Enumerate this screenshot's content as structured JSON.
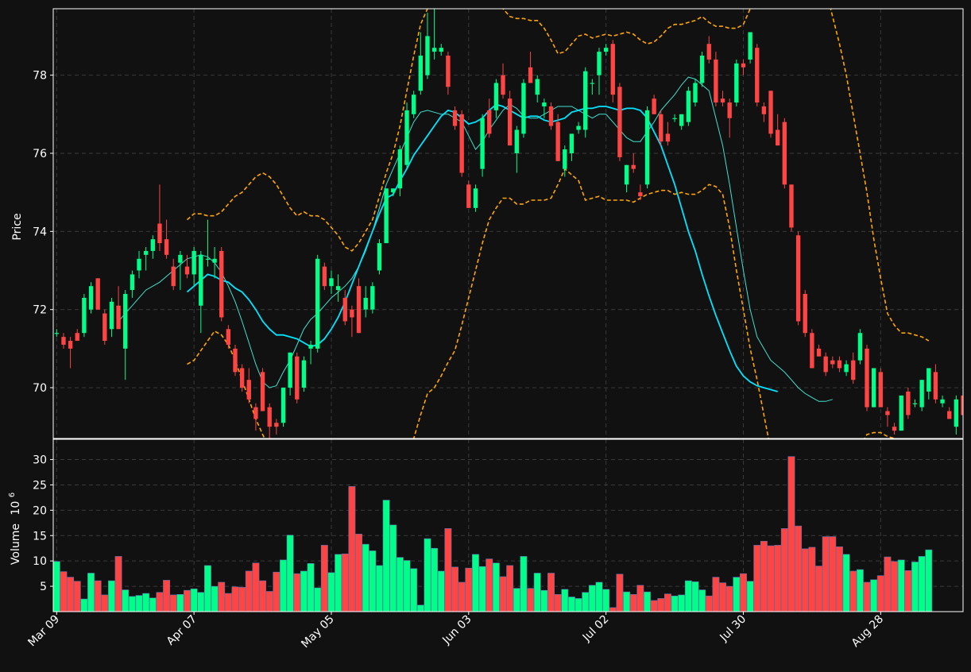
{
  "chart_data": {
    "type": "candlestick",
    "theme": {
      "background": "#111111",
      "up_color": "#00ff88",
      "down_color": "#ff4444",
      "grid_color": "#3a3a3a",
      "text_color": "#ffffff",
      "band_color": "#ffa500",
      "ma_color": "#00e5ff"
    },
    "price_panel": {
      "ylabel": "Price",
      "ylim": [
        68.7,
        79.7
      ],
      "yticks": [
        70,
        72,
        74,
        76,
        78
      ],
      "grid": true
    },
    "volume_panel": {
      "ylabel": "Volume",
      "ylabel_exponent": "10",
      "ylabel_power": "6",
      "ylim": [
        0,
        34
      ],
      "yticks": [
        5,
        10,
        15,
        20,
        25,
        30
      ],
      "grid": true
    },
    "x_tick_labels": [
      {
        "label": "Mar 09",
        "index": 0
      },
      {
        "label": "Apr 07",
        "index": 20
      },
      {
        "label": "May 05",
        "index": 40
      },
      {
        "label": "Jun 03",
        "index": 60
      },
      {
        "label": "Jul 02",
        "index": 80
      },
      {
        "label": "Jul 30",
        "index": 100
      },
      {
        "label": "Aug 28",
        "index": 120
      }
    ],
    "candles": [
      [
        71.4,
        71.5,
        71.3,
        71.4
      ],
      [
        71.3,
        71.4,
        71.0,
        71.1
      ],
      [
        71.2,
        71.3,
        70.5,
        71.0
      ],
      [
        71.4,
        71.5,
        71.2,
        71.2
      ],
      [
        71.4,
        72.4,
        71.3,
        72.3
      ],
      [
        72.0,
        72.7,
        71.9,
        72.6
      ],
      [
        72.8,
        72.8,
        72.0,
        72.0
      ],
      [
        71.9,
        72.0,
        71.1,
        71.2
      ],
      [
        71.5,
        72.3,
        71.3,
        72.2
      ],
      [
        72.1,
        72.6,
        71.5,
        71.5
      ],
      [
        71.0,
        72.5,
        70.2,
        72.4
      ],
      [
        72.5,
        73.0,
        72.3,
        72.9
      ],
      [
        73.0,
        73.5,
        72.8,
        73.3
      ],
      [
        73.4,
        73.6,
        73.0,
        73.5
      ],
      [
        73.5,
        73.9,
        73.3,
        73.8
      ],
      [
        74.2,
        75.2,
        73.5,
        73.7
      ],
      [
        73.8,
        74.3,
        73.3,
        73.4
      ],
      [
        73.1,
        73.3,
        72.5,
        72.6
      ],
      [
        73.2,
        73.5,
        72.5,
        73.4
      ],
      [
        73.1,
        73.4,
        72.8,
        72.9
      ],
      [
        72.9,
        73.6,
        72.6,
        73.5
      ],
      [
        72.1,
        73.5,
        71.4,
        73.4
      ],
      [
        73.3,
        74.3,
        73.1,
        73.3
      ],
      [
        73.2,
        73.6,
        72.8,
        73.3
      ],
      [
        73.5,
        73.6,
        71.7,
        71.8
      ],
      [
        71.5,
        71.6,
        71.0,
        71.1
      ],
      [
        71.0,
        71.1,
        70.3,
        70.4
      ],
      [
        70.5,
        70.6,
        69.9,
        70.0
      ],
      [
        70.2,
        70.5,
        69.6,
        69.7
      ],
      [
        69.5,
        69.6,
        68.9,
        69.2
      ],
      [
        70.4,
        70.5,
        69.4,
        69.4
      ],
      [
        69.5,
        69.6,
        68.6,
        69.0
      ],
      [
        69.1,
        69.2,
        68.8,
        69.0
      ],
      [
        69.1,
        70.0,
        69.0,
        70.0
      ],
      [
        70.0,
        70.9,
        69.8,
        70.9
      ],
      [
        70.8,
        70.9,
        69.6,
        69.7
      ],
      [
        70.0,
        70.8,
        69.9,
        70.7
      ],
      [
        71.0,
        71.2,
        70.6,
        71.1
      ],
      [
        71.0,
        73.4,
        70.9,
        73.3
      ],
      [
        73.1,
        73.2,
        72.5,
        72.6
      ],
      [
        72.6,
        73.0,
        72.4,
        72.8
      ],
      [
        72.5,
        72.9,
        72.2,
        72.6
      ],
      [
        72.3,
        72.5,
        71.6,
        71.7
      ],
      [
        72.0,
        72.1,
        71.3,
        71.8
      ],
      [
        72.6,
        72.8,
        71.4,
        71.4
      ],
      [
        72.0,
        72.6,
        71.8,
        72.3
      ],
      [
        72.0,
        72.7,
        71.9,
        72.6
      ],
      [
        73.0,
        73.8,
        72.9,
        73.7
      ],
      [
        73.7,
        75.1,
        73.7,
        75.1
      ],
      [
        75.0,
        75.1,
        74.9,
        75.1
      ],
      [
        75.1,
        76.2,
        74.9,
        76.1
      ],
      [
        75.7,
        77.3,
        75.6,
        77.1
      ],
      [
        77.0,
        77.6,
        76.9,
        77.5
      ],
      [
        77.6,
        79.1,
        77.5,
        78.5
      ],
      [
        78.0,
        79.6,
        77.9,
        79.0
      ],
      [
        78.6,
        79.8,
        78.4,
        78.7
      ],
      [
        78.6,
        78.8,
        78.5,
        78.7
      ],
      [
        78.5,
        78.6,
        77.5,
        77.7
      ],
      [
        77.1,
        77.2,
        76.6,
        76.7
      ],
      [
        77.0,
        77.1,
        75.4,
        75.5
      ],
      [
        75.2,
        75.3,
        74.6,
        74.6
      ],
      [
        74.6,
        75.2,
        74.5,
        75.1
      ],
      [
        75.6,
        77.0,
        75.4,
        76.9
      ],
      [
        77.1,
        77.4,
        76.4,
        76.5
      ],
      [
        77.1,
        77.9,
        76.9,
        77.8
      ],
      [
        78.0,
        78.3,
        77.4,
        77.5
      ],
      [
        77.4,
        77.6,
        76.2,
        76.2
      ],
      [
        76.0,
        76.7,
        75.5,
        76.6
      ],
      [
        76.5,
        77.9,
        76.4,
        77.8
      ],
      [
        78.2,
        78.6,
        77.8,
        77.8
      ],
      [
        77.5,
        78.0,
        77.3,
        77.9
      ],
      [
        77.2,
        77.4,
        76.9,
        77.3
      ],
      [
        77.2,
        77.3,
        76.6,
        76.7
      ],
      [
        76.8,
        77.0,
        75.8,
        75.8
      ],
      [
        75.6,
        76.2,
        75.4,
        76.1
      ],
      [
        76.0,
        76.4,
        75.8,
        76.5
      ],
      [
        76.6,
        76.8,
        76.5,
        76.7
      ],
      [
        76.6,
        78.2,
        76.4,
        78.1
      ],
      [
        77.8,
        77.9,
        77.5,
        77.8
      ],
      [
        78.0,
        78.7,
        77.5,
        78.6
      ],
      [
        78.6,
        78.8,
        78.5,
        78.7
      ],
      [
        78.8,
        78.9,
        77.3,
        77.5
      ],
      [
        77.7,
        77.8,
        75.8,
        75.9
      ],
      [
        75.2,
        75.7,
        75.0,
        75.7
      ],
      [
        75.7,
        76.0,
        75.5,
        75.6
      ],
      [
        75.0,
        75.2,
        74.8,
        74.9
      ],
      [
        75.2,
        77.2,
        75.1,
        77.1
      ],
      [
        77.4,
        77.5,
        77.0,
        77.0
      ],
      [
        77.0,
        77.1,
        76.2,
        76.3
      ],
      [
        76.5,
        76.8,
        76.2,
        76.3
      ],
      [
        76.9,
        77.0,
        76.8,
        76.9
      ],
      [
        76.7,
        77.0,
        76.6,
        77.0
      ],
      [
        76.8,
        77.7,
        76.7,
        77.6
      ],
      [
        77.3,
        77.9,
        77.2,
        77.8
      ],
      [
        77.8,
        78.6,
        77.7,
        78.5
      ],
      [
        78.8,
        79.0,
        78.3,
        78.4
      ],
      [
        78.4,
        78.6,
        77.2,
        77.3
      ],
      [
        77.4,
        77.6,
        77.2,
        77.3
      ],
      [
        77.3,
        77.4,
        76.4,
        76.9
      ],
      [
        77.3,
        78.4,
        77.2,
        78.3
      ],
      [
        78.3,
        78.4,
        78.0,
        78.2
      ],
      [
        78.4,
        79.1,
        78.3,
        79.1
      ],
      [
        78.7,
        78.8,
        77.2,
        77.3
      ],
      [
        77.2,
        77.3,
        76.8,
        77.0
      ],
      [
        77.6,
        77.6,
        76.4,
        76.5
      ],
      [
        76.6,
        77.0,
        76.2,
        76.2
      ],
      [
        76.8,
        76.9,
        75.1,
        75.2
      ],
      [
        75.2,
        75.2,
        74.0,
        74.1
      ],
      [
        73.9,
        74.0,
        71.6,
        71.7
      ],
      [
        72.4,
        72.5,
        71.3,
        71.4
      ],
      [
        71.4,
        71.5,
        70.5,
        70.5
      ],
      [
        71.0,
        71.1,
        70.8,
        70.8
      ],
      [
        70.8,
        70.9,
        70.3,
        70.4
      ],
      [
        70.7,
        70.8,
        70.5,
        70.6
      ],
      [
        70.7,
        70.8,
        70.4,
        70.5
      ],
      [
        70.4,
        70.7,
        70.3,
        70.6
      ],
      [
        70.7,
        70.9,
        70.1,
        70.2
      ],
      [
        70.7,
        71.5,
        70.6,
        71.4
      ],
      [
        71.0,
        71.1,
        69.4,
        69.5
      ],
      [
        69.5,
        70.5,
        69.5,
        70.5
      ],
      [
        70.4,
        70.5,
        69.5,
        69.5
      ],
      [
        69.4,
        69.5,
        69.0,
        69.3
      ],
      [
        69.0,
        69.1,
        68.8,
        68.9
      ],
      [
        68.9,
        69.8,
        68.9,
        69.8
      ],
      [
        69.9,
        70.0,
        69.2,
        69.3
      ],
      [
        69.6,
        69.7,
        69.5,
        69.6
      ],
      [
        69.5,
        70.2,
        69.4,
        70.2
      ],
      [
        69.9,
        70.5,
        69.7,
        70.5
      ],
      [
        70.4,
        70.6,
        69.6,
        69.7
      ],
      [
        69.6,
        69.8,
        69.5,
        69.7
      ],
      [
        69.4,
        69.5,
        69.2,
        69.2
      ],
      [
        69.0,
        69.8,
        68.8,
        69.7
      ],
      [
        69.8,
        69.9,
        69.2,
        69.3
      ]
    ],
    "volume": [
      9.9,
      7.9,
      6.8,
      6.0,
      2.5,
      7.6,
      6.1,
      3.3,
      6.1,
      10.9,
      4.3,
      3.0,
      3.2,
      3.6,
      2.7,
      3.8,
      6.2,
      3.3,
      3.4,
      4.2,
      4.5,
      3.8,
      9.1,
      5.0,
      5.8,
      3.6,
      4.9,
      4.8,
      8.0,
      9.6,
      6.1,
      4.0,
      7.8,
      10.2,
      15.1,
      7.5,
      8.0,
      9.5,
      4.7,
      13.1,
      7.7,
      11.3,
      11.4,
      24.7,
      15.3,
      13.3,
      12.0,
      9.1,
      22.0,
      17.1,
      10.7,
      10.1,
      8.5,
      1.3,
      14.4,
      12.5,
      8.0,
      16.4,
      8.8,
      5.8,
      8.6,
      11.3,
      8.9,
      10.4,
      9.6,
      6.9,
      9.1,
      4.6,
      10.9,
      4.6,
      7.6,
      4.2,
      7.6,
      3.4,
      4.4,
      2.9,
      2.6,
      3.8,
      5.2,
      5.8,
      4.4,
      0.8,
      7.4,
      3.9,
      3.4,
      5.2,
      3.9,
      2.2,
      2.6,
      3.5,
      3.1,
      3.3,
      6.1,
      5.9,
      4.3,
      3.1,
      6.8,
      5.7,
      5.0,
      6.8,
      7.5,
      6.0,
      13.1,
      13.9,
      13.0,
      13.1,
      16.4,
      30.6,
      16.9,
      12.4,
      12.7,
      9.0,
      14.8,
      14.8,
      12.8,
      11.3,
      8.0,
      8.3,
      5.8,
      6.3,
      7.1,
      10.8,
      9.9,
      10.2,
      8.1,
      9.8,
      10.9,
      12.2
    ],
    "bollinger_upper": [
      null,
      null,
      null,
      null,
      null,
      null,
      null,
      null,
      null,
      null,
      null,
      null,
      null,
      null,
      null,
      null,
      null,
      null,
      null,
      74.3,
      74.45,
      74.45,
      74.4,
      74.4,
      74.5,
      74.7,
      74.9,
      75.0,
      75.2,
      75.4,
      75.5,
      75.4,
      75.2,
      74.9,
      74.6,
      74.4,
      74.5,
      74.4,
      74.4,
      74.3,
      74.1,
      73.9,
      73.6,
      73.5,
      73.7,
      74.0,
      74.3,
      74.9,
      75.5,
      76.0,
      76.7,
      77.6,
      78.5,
      79.3,
      79.7,
      80.2,
      80.6,
      80.8,
      80.8,
      80.6,
      80.4,
      80.3,
      80.2,
      80.1,
      79.9,
      79.7,
      79.5,
      79.45,
      79.45,
      79.4,
      79.4,
      79.2,
      78.9,
      78.55,
      78.6,
      78.8,
      79.0,
      79.05,
      78.95,
      79.0,
      79.05,
      79.0,
      79.05,
      79.1,
      79.05,
      78.9,
      78.8,
      78.85,
      79.0,
      79.2,
      79.3,
      79.3,
      79.35,
      79.4,
      79.5,
      79.35,
      79.25,
      79.25,
      79.2,
      79.2,
      79.3,
      79.7,
      80.3,
      80.8,
      81.2,
      81.4,
      81.6,
      81.6,
      81.5,
      81.3,
      81.0,
      80.6,
      80.2,
      79.5,
      78.8,
      78.0,
      77.0,
      76.0,
      75.0,
      73.8,
      72.8,
      71.9,
      71.6,
      71.4,
      71.4,
      71.35,
      71.3,
      71.2
    ],
    "bollinger_lower": [
      null,
      null,
      null,
      null,
      null,
      null,
      null,
      null,
      null,
      null,
      null,
      null,
      null,
      null,
      null,
      null,
      null,
      null,
      null,
      70.6,
      70.7,
      70.95,
      71.2,
      71.45,
      71.35,
      71.1,
      70.7,
      70.2,
      69.7,
      69.2,
      68.8,
      68.45,
      68.2,
      68.0,
      67.9,
      67.8,
      67.7,
      67.6,
      67.5,
      67.4,
      67.2,
      67.0,
      66.8,
      66.6,
      66.5,
      66.5,
      66.6,
      66.8,
      67.0,
      67.3,
      67.8,
      68.3,
      68.7,
      69.3,
      69.85,
      70.0,
      70.3,
      70.65,
      70.95,
      71.6,
      72.3,
      73.0,
      73.7,
      74.3,
      74.6,
      74.85,
      74.85,
      74.7,
      74.7,
      74.8,
      74.8,
      74.8,
      74.85,
      75.2,
      75.6,
      75.45,
      75.3,
      74.8,
      74.85,
      74.9,
      74.8,
      74.8,
      74.8,
      74.8,
      74.75,
      74.85,
      74.95,
      75.0,
      75.05,
      75.05,
      74.95,
      75.0,
      74.95,
      74.95,
      75.05,
      75.2,
      75.15,
      74.95,
      74.1,
      73.0,
      72.0,
      71.0,
      70.2,
      69.3,
      68.4,
      67.6,
      66.9,
      66.3,
      65.8,
      65.6,
      65.6,
      65.7,
      65.9,
      66.3,
      66.8,
      67.4,
      68.0,
      68.5,
      68.8,
      68.85,
      68.85,
      68.75,
      68.7,
      68.65
    ],
    "ma_short": [
      null,
      null,
      null,
      null,
      null,
      null,
      null,
      null,
      null,
      null,
      null,
      null,
      null,
      null,
      null,
      null,
      null,
      null,
      null,
      null,
      null,
      null,
      null,
      null,
      null,
      null,
      null,
      null,
      null,
      null,
      null,
      null,
      null,
      null,
      null,
      null,
      null,
      null,
      null,
      null,
      null,
      null,
      null,
      null,
      null,
      null,
      null,
      null,
      null,
      null,
      null,
      null,
      null,
      null,
      null,
      null,
      null,
      null,
      null,
      null,
      null,
      null,
      null,
      null,
      null,
      null,
      null,
      null,
      null,
      null,
      null,
      null,
      null,
      null,
      null,
      null,
      null,
      null,
      null,
      null,
      null,
      null,
      null,
      null,
      null,
      null,
      null,
      null,
      null,
      null,
      null,
      null,
      null,
      null,
      null,
      null,
      null,
      null,
      null,
      null,
      null,
      null,
      null,
      null,
      null,
      null,
      null,
      null,
      null,
      null,
      null,
      null,
      null,
      null,
      null,
      null,
      null,
      null,
      null,
      null,
      null,
      null,
      null,
      null,
      null,
      null,
      null,
      null
    ],
    "ma_fast": [
      null,
      null,
      null,
      null,
      null,
      null,
      null,
      null,
      null,
      71.7,
      71.9,
      72.1,
      72.3,
      72.5,
      72.6,
      72.7,
      72.85,
      73.0,
      73.15,
      73.3,
      73.35,
      73.4,
      73.35,
      73.2,
      72.95,
      72.6,
      72.2,
      71.7,
      71.15,
      70.6,
      70.15,
      70.0,
      70.05,
      70.4,
      70.7,
      71.1,
      71.5,
      71.75,
      71.9,
      72.1,
      72.3,
      72.45,
      72.6,
      72.8,
      73.1,
      73.5,
      74.0,
      74.6,
      75.2,
      75.6,
      76.0,
      76.4,
      76.8,
      77.05,
      77.1,
      77.05,
      77.0,
      77.0,
      76.9,
      76.8,
      76.45,
      76.1,
      76.3,
      76.6,
      76.85,
      77.1,
      77.25,
      77.15,
      76.95,
      76.9,
      76.9,
      77.0,
      77.1,
      77.2,
      77.2,
      77.2,
      77.1,
      77.0,
      76.9,
      77.0,
      77.0,
      76.8,
      76.6,
      76.4,
      76.3,
      76.3,
      76.55,
      76.8,
      77.1,
      77.3,
      77.5,
      77.75,
      77.95,
      77.9,
      77.75,
      77.6,
      76.9,
      76.2,
      75.2,
      74.1,
      73.0,
      72.0,
      71.3,
      71.0,
      70.7,
      70.55,
      70.4,
      70.2,
      70.0,
      69.85,
      69.75,
      69.65,
      69.65,
      69.7
    ],
    "ma_slow": [
      null,
      null,
      null,
      null,
      null,
      null,
      null,
      null,
      null,
      null,
      null,
      null,
      null,
      null,
      null,
      null,
      null,
      null,
      null,
      72.45,
      72.6,
      72.75,
      72.9,
      72.85,
      72.75,
      72.7,
      72.55,
      72.45,
      72.25,
      72.0,
      71.7,
      71.5,
      71.35,
      71.35,
      71.3,
      71.25,
      71.15,
      71.05,
      71.1,
      71.25,
      71.5,
      71.8,
      72.2,
      72.65,
      73.1,
      73.55,
      74.0,
      74.45,
      74.85,
      74.95,
      75.3,
      75.6,
      75.95,
      76.2,
      76.45,
      76.7,
      76.95,
      77.1,
      77.05,
      76.9,
      76.75,
      76.8,
      76.9,
      77.1,
      77.25,
      77.2,
      77.1,
      77.0,
      76.9,
      76.95,
      76.95,
      76.85,
      76.8,
      76.85,
      76.9,
      77.05,
      77.1,
      77.15,
      77.15,
      77.2,
      77.2,
      77.15,
      77.1,
      77.15,
      77.15,
      77.1,
      76.9,
      76.55,
      76.2,
      75.7,
      75.2,
      74.6,
      74.0,
      73.5,
      72.9,
      72.35,
      71.85,
      71.4,
      70.95,
      70.55,
      70.3,
      70.15,
      70.05,
      70.0,
      69.95,
      69.9
    ]
  }
}
